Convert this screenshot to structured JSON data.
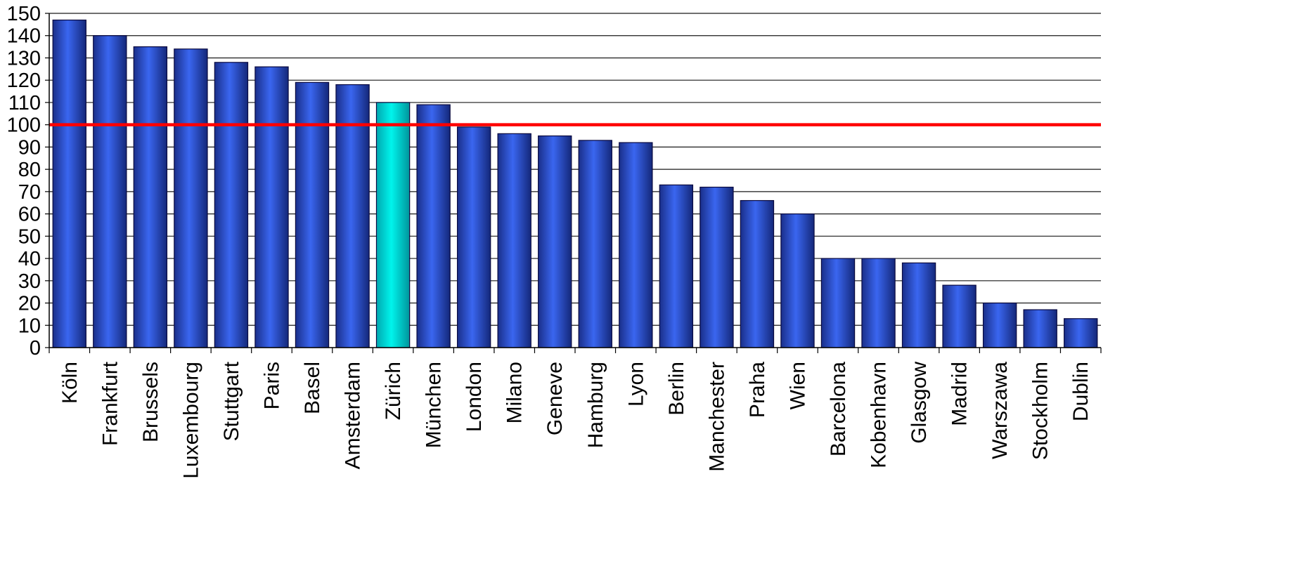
{
  "chart_data": {
    "type": "bar",
    "title": "",
    "xlabel": "",
    "ylabel": "",
    "ylim": [
      0,
      150
    ],
    "yticks": [
      0,
      10,
      20,
      30,
      40,
      50,
      60,
      70,
      80,
      90,
      100,
      110,
      120,
      130,
      140,
      150
    ],
    "grid": true,
    "legend": "none",
    "categories": [
      "Köln",
      "Frankfurt",
      "Brussels",
      "Luxembourg",
      "Stuttgart",
      "Paris",
      "Basel",
      "Amsterdam",
      "Zürich",
      "München",
      "London",
      "Milano",
      "Geneve",
      "Hamburg",
      "Lyon",
      "Berlin",
      "Manchester",
      "Praha",
      "Wien",
      "Barcelona",
      "Kobenhavn",
      "Glasgow",
      "Madrid",
      "Warszawa",
      "Stockholm",
      "Dublin"
    ],
    "values": [
      147,
      140,
      135,
      134,
      128,
      126,
      119,
      118,
      110,
      109,
      99,
      96,
      95,
      93,
      92,
      73,
      72,
      66,
      60,
      40,
      40,
      38,
      28,
      20,
      17,
      13
    ],
    "highlight_category": "Zürich",
    "reference_line": {
      "value": 100,
      "color": "#ff0000"
    },
    "colors": {
      "bar": "#2050e0",
      "bar_highlight": "#00e8e0",
      "reference_line": "#ff0000"
    }
  }
}
